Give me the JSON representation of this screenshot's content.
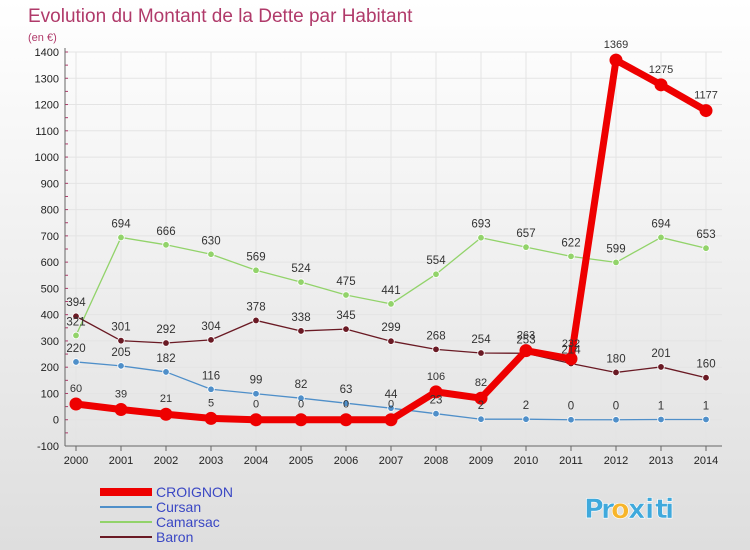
{
  "chart_data": {
    "type": "line",
    "title": "Evolution du Montant de la Dette par Habitant",
    "subtitle": "(en €)",
    "x": [
      "2000",
      "2001",
      "2002",
      "2003",
      "2004",
      "2005",
      "2006",
      "2007",
      "2008",
      "2009",
      "2010",
      "2011",
      "2012",
      "2013",
      "2014"
    ],
    "ylim": [
      -100,
      1400
    ],
    "yticks": [
      -100,
      0,
      100,
      200,
      300,
      400,
      500,
      600,
      700,
      800,
      900,
      1000,
      1100,
      1200,
      1300,
      1400
    ],
    "grid": true,
    "legend_position": "bottom-left",
    "series": [
      {
        "name": "Cursan",
        "color": "#4f8fc9",
        "values": [
          220,
          205,
          182,
          116,
          99,
          82,
          63,
          44,
          23,
          2,
          2,
          0,
          0,
          1,
          1
        ]
      },
      {
        "name": "Camarsac",
        "color": "#92d36a",
        "values": [
          321,
          694,
          666,
          630,
          569,
          524,
          475,
          441,
          554,
          693,
          657,
          622,
          599,
          694,
          653
        ]
      },
      {
        "name": "Baron",
        "color": "#6a1a24",
        "values": [
          394,
          301,
          292,
          304,
          378,
          338,
          345,
          299,
          268,
          254,
          253,
          214,
          180,
          201,
          160
        ]
      },
      {
        "name": "CROIGNON",
        "color": "#ee0000",
        "values": [
          60,
          39,
          21,
          5,
          0,
          0,
          0,
          0,
          106,
          82,
          263,
          232,
          1369,
          1275,
          1177
        ]
      }
    ]
  },
  "brand": {
    "text": "Proxiti",
    "letters": [
      "P",
      "r",
      "o",
      "x",
      "i",
      "t",
      "i"
    ],
    "colors": [
      "#3fa9dc",
      "#3fa9dc",
      "#f7b52b",
      "#3fa9dc",
      "#3fa9dc",
      "#3fa9dc",
      "#3fa9dc"
    ]
  },
  "colors": {
    "title": "#b03a6a",
    "axis_text": "#222222",
    "background_top": "#ffffff",
    "background_bottom": "#dcdcdc",
    "grid": "#e6e6e6",
    "axis_tick": "#b03a6a"
  }
}
